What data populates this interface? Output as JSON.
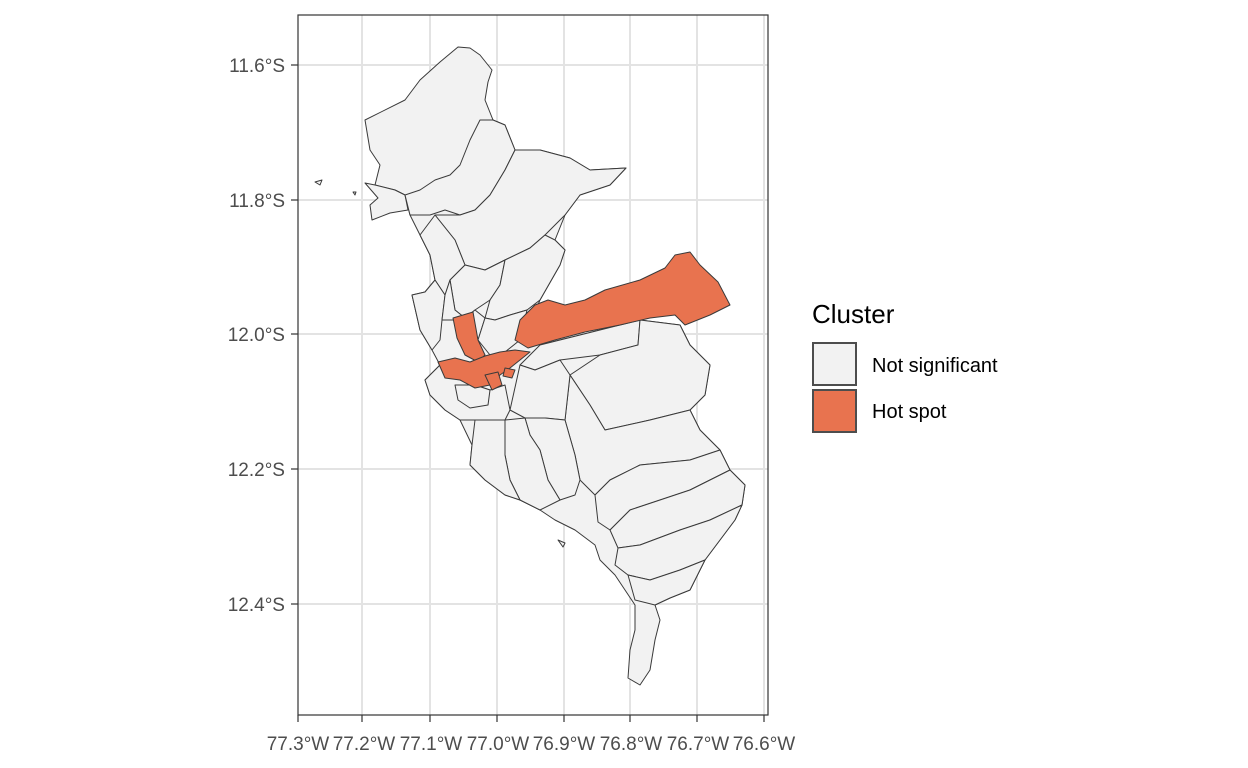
{
  "legend": {
    "title": "Cluster",
    "items": [
      {
        "label": "Not significant",
        "color": "#f2f2f2"
      },
      {
        "label": "Hot spot",
        "color": "#e8734f"
      }
    ]
  },
  "y_ticks": [
    "11.6°S",
    "11.8°S",
    "12.0°S",
    "12.2°S",
    "12.4°S"
  ],
  "x_ticks": [
    "77.3°W",
    "77.2°W",
    "77.1°W",
    "77.0°W",
    "76.9°W",
    "76.8°W",
    "76.7°W",
    "76.6°W"
  ],
  "colors": {
    "fill_default": "#f2f2f2",
    "fill_hot": "#e8734f",
    "border": "#3a3a3a",
    "grid": "#e3e3e3"
  }
}
